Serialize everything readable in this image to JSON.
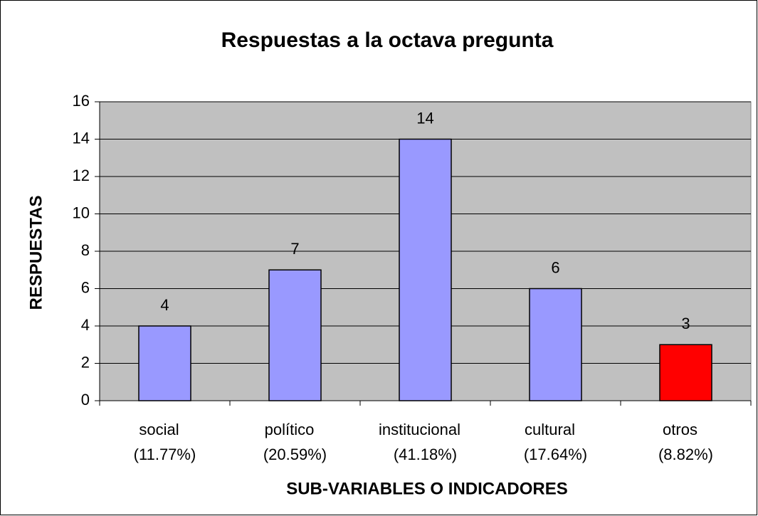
{
  "chart_data": {
    "type": "bar",
    "title": "Respuestas a la octava pregunta",
    "xlabel": "SUB-VARIABLES O INDICADORES",
    "ylabel": "RESPUESTAS",
    "categories": [
      [
        "social",
        "(11.77%)"
      ],
      [
        "político",
        "(20.59%)"
      ],
      [
        "institucional",
        "(41.18%)"
      ],
      [
        "cultural",
        "(17.64%)"
      ],
      [
        "otros",
        "(8.82%)"
      ]
    ],
    "values": [
      4,
      7,
      14,
      6,
      3
    ],
    "colors": [
      "#9999ff",
      "#9999ff",
      "#9999ff",
      "#9999ff",
      "#ff0000"
    ],
    "ylim": [
      0,
      16
    ],
    "yticks": [
      0,
      2,
      4,
      6,
      8,
      10,
      12,
      14,
      16
    ],
    "grid": true
  }
}
